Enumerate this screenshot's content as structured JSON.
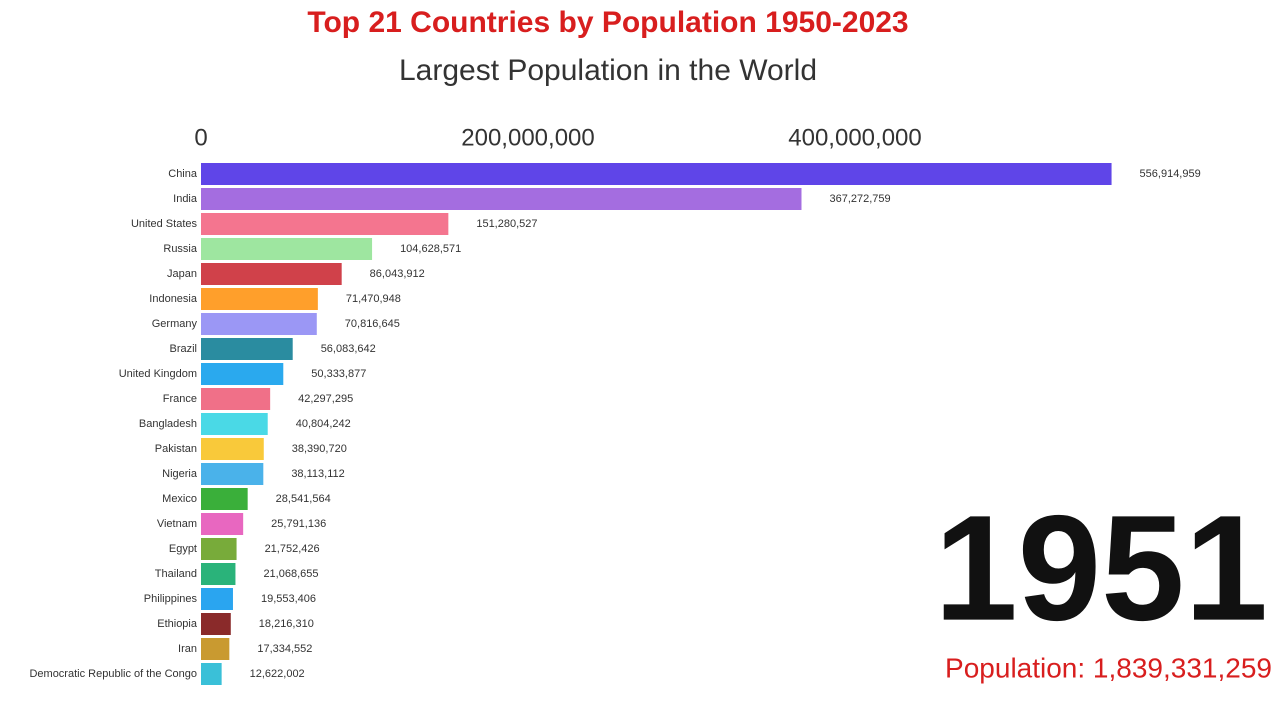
{
  "chart_data": {
    "type": "bar",
    "orientation": "horizontal",
    "title": "Top 21 Countries by Population 1950-2023",
    "subtitle": "Largest Population in the World",
    "year": "1951",
    "total_label": "Population: 1,839,331,259",
    "categories": [
      "China",
      "India",
      "United States",
      "Russia",
      "Japan",
      "Indonesia",
      "Germany",
      "Brazil",
      "United Kingdom",
      "France",
      "Bangladesh",
      "Pakistan",
      "Nigeria",
      "Mexico",
      "Vietnam",
      "Egypt",
      "Thailand",
      "Philippines",
      "Ethiopia",
      "Iran",
      "Democratic Republic of the Congo"
    ],
    "values": [
      556914959,
      367272759,
      151280527,
      104628571,
      86043912,
      71470948,
      70816645,
      56083642,
      50333877,
      42297295,
      40804242,
      38390720,
      38113112,
      28541564,
      25791136,
      21752426,
      21068655,
      19553406,
      18216310,
      17334552,
      12622002
    ],
    "value_labels": [
      "556,914,959",
      "367,272,759",
      "151,280,527",
      "104,628,571",
      "86,043,912",
      "71,470,948",
      "70,816,645",
      "56,083,642",
      "50,333,877",
      "42,297,295",
      "40,804,242",
      "38,390,720",
      "38,113,112",
      "28,541,564",
      "25,791,136",
      "21,752,426",
      "21,068,655",
      "19,553,406",
      "18,216,310",
      "17,334,552",
      "12,622,002"
    ],
    "colors": [
      "#5f45e8",
      "#a46de0",
      "#f4758f",
      "#9ee6a0",
      "#d0414a",
      "#ff9f2b",
      "#9b97f5",
      "#2a8ca0",
      "#2aa9ee",
      "#f07088",
      "#4ad9e6",
      "#f9c93a",
      "#4ab2ea",
      "#3aaf3a",
      "#e867c0",
      "#78ab3a",
      "#2ab37a",
      "#2aa5f0",
      "#8a2a2a",
      "#c99a30",
      "#3ac0d8"
    ],
    "xlim": [
      0,
      600000000
    ],
    "xticks": [
      0,
      {
        "value": 200000000,
        "label": "200,000,000"
      },
      {
        "value": 400000000,
        "label": "400,000,000"
      }
    ]
  }
}
